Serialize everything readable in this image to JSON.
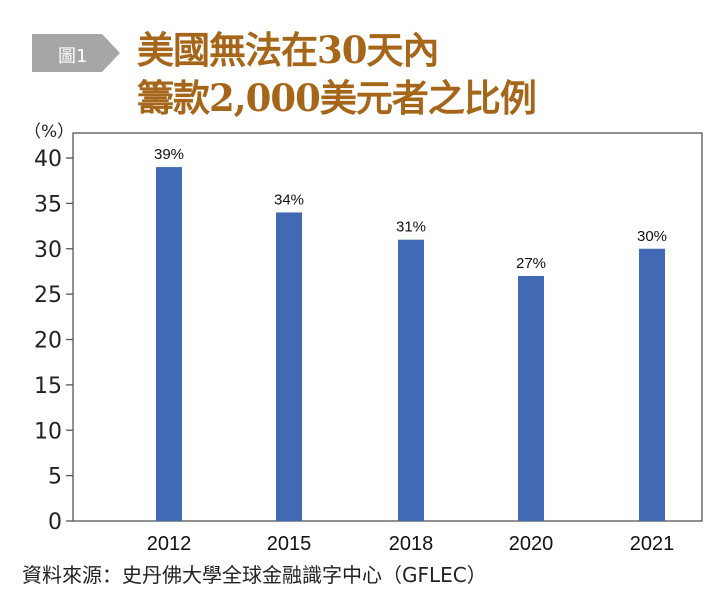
{
  "figure": {
    "badge_label": "圖1",
    "title_line1": "美國無法在30天內",
    "title_line2": "籌款2,000美元者之比例",
    "source": "資料來源：史丹佛大學全球金融識字中心（GFLEC）"
  },
  "colors": {
    "bar": "#4169b4",
    "title": "#a5661a",
    "badge": "#a6a6a6"
  },
  "chart_data": {
    "type": "bar",
    "title": "美國無法在30天內籌款2,000美元者之比例",
    "ylabel": "（%）",
    "xlabel": "",
    "categories": [
      "2012",
      "2015",
      "2018",
      "2020",
      "2021"
    ],
    "values": [
      39,
      34,
      31,
      27,
      30
    ],
    "data_labels": [
      "39%",
      "34%",
      "31%",
      "27%",
      "30%"
    ],
    "ylim": [
      0,
      40
    ],
    "yticks": [
      "0",
      "5",
      "10",
      "15",
      "20",
      "25",
      "30",
      "35",
      "40"
    ],
    "grid": false,
    "legend": "none"
  }
}
